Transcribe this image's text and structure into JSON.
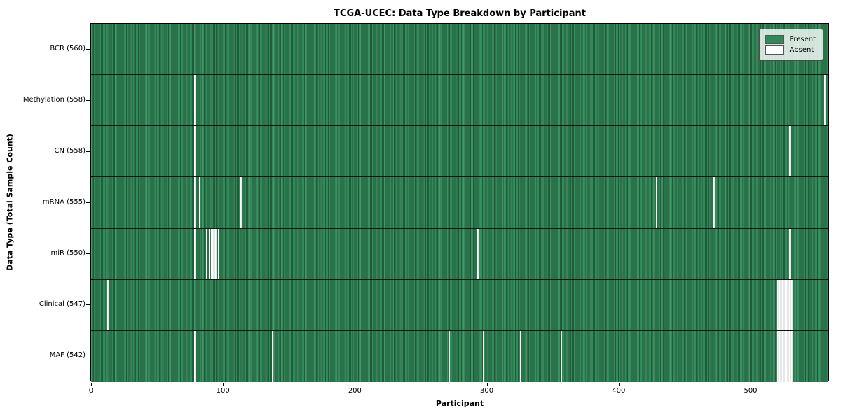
{
  "figure": {
    "title": "TCGA-UCEC: Data Type Breakdown by Participant",
    "xlabel": "Participant",
    "ylabel": "Data Type (Total Sample Count)"
  },
  "chart_data": {
    "type": "heatmap",
    "title": "TCGA-UCEC: Data Type Breakdown by Participant",
    "xlabel": "Participant",
    "ylabel": "Data Type (Total Sample Count)",
    "n_participants": 560,
    "xlim": [
      -0.5,
      559.5
    ],
    "x_ticks": [
      0,
      100,
      200,
      300,
      400,
      500
    ],
    "grid": false,
    "legend_position": "upper right",
    "legend": [
      {
        "label": "Present",
        "color": "#2e8b57"
      },
      {
        "label": "Absent",
        "color": "#ffffff"
      }
    ],
    "colors": {
      "present": "#2e8b57",
      "present_edge": "#1e5c3a",
      "absent": "#ffffff",
      "row_divider": "#000000"
    },
    "rows": [
      {
        "data_type": "BCR",
        "label": "BCR (560)",
        "present_count": 560,
        "absent_participants": []
      },
      {
        "data_type": "Methylation",
        "label": "Methylation (558)",
        "present_count": 558,
        "absent_participants": [
          78,
          556
        ]
      },
      {
        "data_type": "CN",
        "label": "CN (558)",
        "present_count": 558,
        "absent_participants": [
          78,
          529
        ]
      },
      {
        "data_type": "mRNA",
        "label": "mRNA (555)",
        "present_count": 555,
        "absent_participants": [
          78,
          82,
          113,
          428,
          472
        ]
      },
      {
        "data_type": "miR",
        "label": "miR (550)",
        "present_count": 550,
        "absent_participants": [
          78,
          87,
          89,
          91,
          92,
          93,
          94,
          96,
          293,
          529
        ]
      },
      {
        "data_type": "Clinical",
        "label": "Clinical (547)",
        "present_count": 547,
        "absent_participants": [
          12,
          520,
          521,
          522,
          523,
          524,
          525,
          526,
          527,
          528,
          529,
          530,
          531
        ]
      },
      {
        "data_type": "MAF",
        "label": "MAF (542)",
        "present_count": 542,
        "absent_participants": [
          78,
          137,
          271,
          297,
          325,
          356,
          520,
          521,
          522,
          523,
          524,
          525,
          526,
          527,
          528,
          529,
          530,
          531
        ]
      }
    ]
  }
}
